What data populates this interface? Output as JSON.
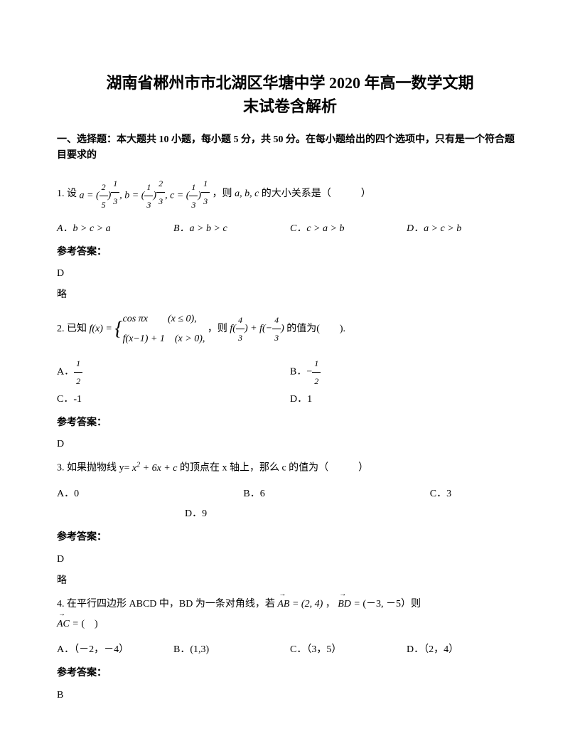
{
  "page": {
    "title_line1": "湖南省郴州市市北湖区华塘中学 2020 年高一数学文期",
    "title_line2": "末试卷含解析",
    "section1_header": "一、选择题：本大题共 10 小题，每小题 5 分，共 50 分。在每小题给出的四个选项中，只有是一个符合题目要求的"
  },
  "q1": {
    "prefix": "1. 设",
    "formula": "a = (2/5)^(1/3), b = (1/3)^(2/3), c = (1/3)^(1/3)",
    "mid": "，则",
    "abc": "a, b, c",
    "suffix": "的大小关系是（　　　）",
    "optA": "A．b > c > a",
    "optB": "B．a > b > c",
    "optC": "C．c > a > b",
    "optD": "D．a > c > b",
    "answer_label": "参考答案：",
    "answer": "D",
    "note": "略"
  },
  "q2": {
    "prefix": "2. 已知",
    "mid": "，则",
    "expr": "f(4/3) + f(-4/3)",
    "suffix": "的值为(　　).",
    "optA_label": "A．",
    "optA_val": "1/2",
    "optB_label": "B．",
    "optB_val": "-1/2",
    "optC": "C．-1",
    "optD": "D．1",
    "answer_label": "参考答案：",
    "answer": "D"
  },
  "q3": {
    "prefix": "3. 如果抛物线 y=",
    "formula": "x² + 6x + c",
    "suffix": "的顶点在 x 轴上，那么 c 的值为（　　　）",
    "optA": "A．0",
    "optB": "B．6",
    "optC": "C．3",
    "optD": "D．9",
    "answer_label": "参考答案：",
    "answer": "D",
    "note": "略"
  },
  "q4": {
    "prefix": "4. 在平行四边形 ABCD 中，BD 为一条对角线，若",
    "ab_vec": "AB",
    "ab_val": " = (2, 4)",
    "mid": "，",
    "bd_vec": "BD",
    "bd_val": " = ",
    "bd_coords": "(－3, －5）则",
    "ac_vec": "AC",
    "ac_eq": " = ",
    "suffix": "(　)",
    "optA": "A．（－2，－4）",
    "optB": "B．(1,3)",
    "optC": "C．（3，5）",
    "optD": "D．（2，4）",
    "answer_label": "参考答案：",
    "answer": "B"
  }
}
